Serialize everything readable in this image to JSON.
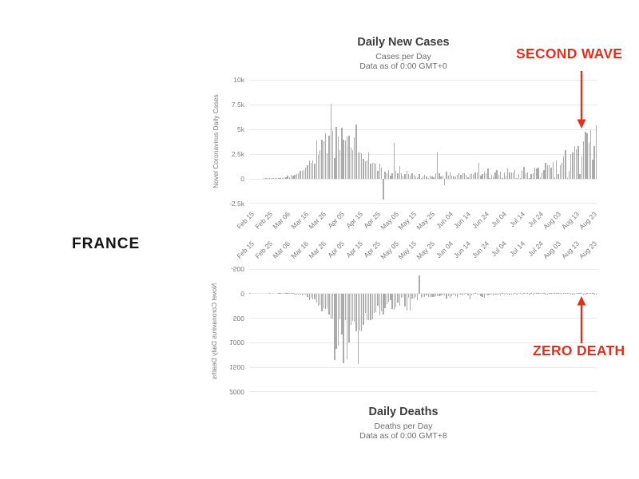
{
  "slide": {
    "country_label": "FRANCE"
  },
  "annotations": {
    "second_wave_label": "SECOND WAVE",
    "zero_death_label": "ZERO DEATH",
    "arrow_color": "#e0301e"
  },
  "chart_data": [
    {
      "type": "bar",
      "title": "Daily New Cases",
      "subtitle": "Cases per Day",
      "note": "Data as of 0:00 GMT+0",
      "ylabel": "Novel Coronavirus Daily Cases",
      "bar_color": "#ababab",
      "grid_color": "#e9e9e9",
      "ylim": [
        -2500,
        10000
      ],
      "ytick_values": [
        10000,
        7500,
        5000,
        2500,
        0,
        -2500
      ],
      "ytick_labels": [
        "10k",
        "7.5k",
        "5k",
        "2.5k",
        "0",
        "-2.5k"
      ],
      "xticks": [
        "Feb 15",
        "Feb 25",
        "Mar 06",
        "Mar 16",
        "Mar 26",
        "Apr 05",
        "Apr 15",
        "Apr 25",
        "May 05",
        "May 15",
        "May 25",
        "Jun 04",
        "Jun 14",
        "Jun 24",
        "Jul 04",
        "Jul 14",
        "Jul 24",
        "Aug 03",
        "Aug 13",
        "Aug 23"
      ],
      "xtick_interval_days": 10,
      "start_date": "Feb 15",
      "values": [
        0,
        0,
        0,
        0,
        0,
        0,
        0,
        0,
        1,
        2,
        2,
        17,
        18,
        19,
        43,
        30,
        61,
        21,
        73,
        138,
        190,
        336,
        177,
        410,
        286,
        372,
        495,
        591,
        780,
        829,
        924,
        1097,
        1404,
        1861,
        1617,
        1847,
        1559,
        3838,
        2448,
        2931,
        3922,
        3809,
        4611,
        2599,
        4376,
        7578,
        4861,
        2116,
        5233,
        4267,
        2886,
        5171,
        3912,
        3881,
        4286,
        4342,
        3114,
        2937,
        4188,
        5497,
        2633,
        2641,
        2569,
        2004,
        1773,
        1828,
        2667,
        1537,
        1653,
        1645,
        1512,
        804,
        1520,
        1102,
        -2130,
        758,
        604,
        886,
        297,
        576,
        3658,
        775,
        600,
        1288,
        579,
        312,
        456,
        802,
        507,
        351,
        563,
        376,
        270,
        151,
        524,
        110,
        251,
        393,
        250,
        115,
        358,
        276,
        191,
        597,
        2640,
        597,
        257,
        338,
        -617,
        766,
        350,
        611,
        343,
        272,
        211,
        403,
        545,
        425,
        562,
        526,
        407,
        151,
        489,
        458,
        467,
        634,
        641,
        1588,
        310,
        517,
        704,
        581,
        1062,
        40,
        413,
        211,
        655,
        918,
        441,
        724,
        60,
        650,
        337,
        1039,
        663,
        621,
        612,
        850,
        120,
        475,
        70,
        836,
        1220,
        600,
        644,
        60,
        500,
        584,
        1130,
        1062,
        1130,
        130,
        675,
        893,
        1592,
        1392,
        1377,
        1130,
        1695,
        160,
        1885,
        522,
        1397,
        1604,
        2288,
        2886,
        60,
        785,
        2524,
        2669,
        3310,
        3015,
        3303,
        493,
        2238,
        3776,
        4771,
        4586,
        3602,
        4897,
        1955,
        3304,
        5429
      ]
    },
    {
      "type": "bar",
      "title": "Daily Deaths",
      "subtitle": "Deaths per Day",
      "note": "Data as of 0:00 GMT+8",
      "ylabel": "Novel Coronavirus Daily Deaths",
      "flipped_vertically": true,
      "bar_color": "#ababab",
      "grid_color": "#e9e9e9",
      "ylim": [
        -500,
        2000
      ],
      "ytick_values": [
        2000,
        1500,
        1000,
        500,
        0,
        -500
      ],
      "ytick_labels": [
        "2000",
        "1500",
        "1000",
        "500",
        "0",
        "-500"
      ],
      "xticks": [
        "Feb 15",
        "Feb 25",
        "Mar 06",
        "Mar 16",
        "Mar 26",
        "Apr 05",
        "Apr 15",
        "Apr 25",
        "May 05",
        "May 15",
        "May 25",
        "Jun 04",
        "Jun 14",
        "Jun 24",
        "Jul 04",
        "Jul 14",
        "Jul 24",
        "Aug 03",
        "Aug 13",
        "Aug 23"
      ],
      "xtick_interval_days": 10,
      "start_date": "Feb 15",
      "values": [
        1,
        0,
        0,
        0,
        0,
        0,
        0,
        0,
        0,
        0,
        0,
        1,
        0,
        0,
        0,
        0,
        1,
        1,
        0,
        2,
        3,
        4,
        8,
        11,
        6,
        15,
        15,
        18,
        12,
        36,
        21,
        27,
        69,
        128,
        78,
        112,
        112,
        186,
        240,
        231,
        365,
        299,
        319,
        292,
        418,
        499,
        509,
        1355,
        1120,
        1053,
        518,
        833,
        1417,
        541,
        1341,
        987,
        635,
        561,
        574,
        762,
        1438,
        753,
        761,
        642,
        395,
        547,
        531,
        544,
        516,
        389,
        369,
        242,
        437,
        367,
        427,
        289,
        218,
        166,
        135,
        306,
        330,
        278,
        178,
        243,
        80,
        70,
        263,
        348,
        83,
        351,
        104,
        96,
        70,
        131,
        -369,
        83,
        66,
        74,
        35,
        70,
        73,
        66,
        66,
        52,
        52,
        57,
        31,
        31,
        28,
        107,
        44,
        81,
        46,
        13,
        54,
        87,
        23,
        27,
        28,
        24,
        9,
        29,
        110,
        28,
        14,
        7,
        19,
        23,
        57,
        73,
        81,
        26,
        30,
        18,
        22,
        30,
        27,
        14,
        18,
        33,
        6,
        12,
        3,
        13,
        16,
        14,
        25,
        4,
        21,
        8,
        5,
        18,
        7,
        9,
        3,
        12,
        7,
        13,
        9,
        8,
        6,
        4,
        11,
        5,
        14,
        16,
        3,
        6,
        6,
        2,
        8,
        5,
        11,
        12,
        4,
        9,
        3,
        4,
        18,
        17,
        12,
        9,
        5,
        2,
        11,
        12,
        15,
        9,
        3,
        4,
        2,
        16,
        22
      ]
    }
  ]
}
